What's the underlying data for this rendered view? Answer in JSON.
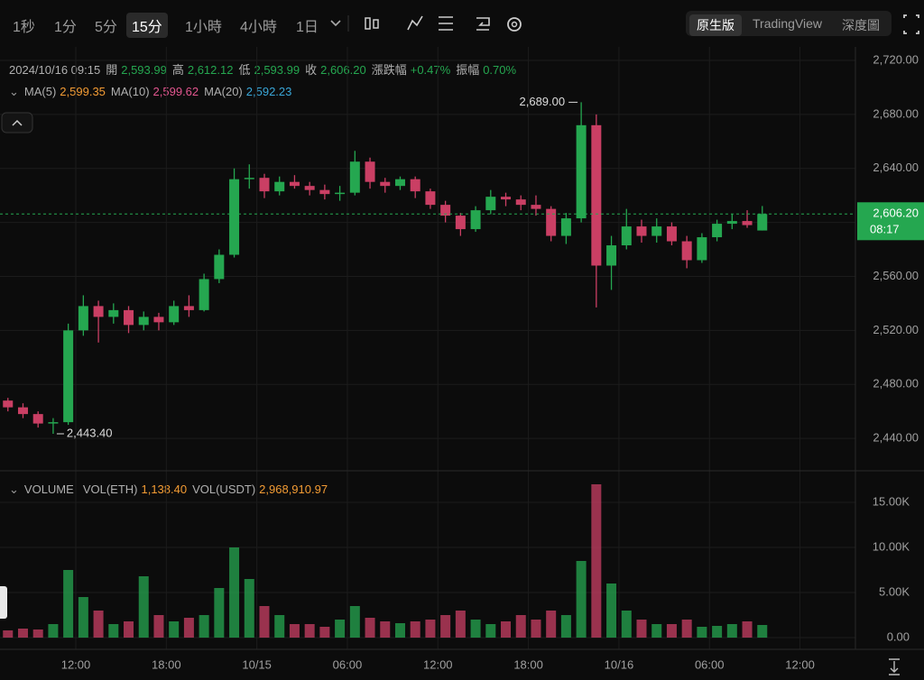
{
  "toolbar": {
    "timeframes": [
      "1秒",
      "1分",
      "5分",
      "15分",
      "1小時",
      "4小時",
      "1日"
    ],
    "views": [
      "原生版",
      "TradingView",
      "深度圖"
    ]
  },
  "ohlc_bar": {
    "time": "2024/10/16 09:15",
    "items": [
      {
        "label": "開",
        "value": "2,593.99"
      },
      {
        "label": "高",
        "value": "2,612.12"
      },
      {
        "label": "低",
        "value": "2,593.99"
      },
      {
        "label": "收",
        "value": "2,606.20"
      },
      {
        "label": "漲跌幅",
        "value": "+0.47%"
      },
      {
        "label": "振幅",
        "value": "0.70%"
      }
    ]
  },
  "ma_bar": [
    {
      "label": "MA(5)",
      "value": "2,599.35",
      "color": "#f39c34"
    },
    {
      "label": "MA(10)",
      "value": "2,599.62",
      "color": "#e2568f"
    },
    {
      "label": "MA(20)",
      "value": "2,592.23",
      "color": "#3aa7d8"
    }
  ],
  "volume_bar": {
    "title": "VOLUME",
    "items": [
      {
        "label": "VOL(ETH)",
        "value": "1,138.40"
      },
      {
        "label": "VOL(USDT)",
        "value": "2,968,910.97"
      }
    ]
  },
  "chart_data": {
    "type": "candlestick",
    "categories": [
      null,
      null,
      null,
      null,
      null,
      "12:00",
      null,
      null,
      null,
      null,
      null,
      "18:00",
      null,
      null,
      null,
      null,
      null,
      "10/15",
      null,
      null,
      null,
      null,
      null,
      "06:00",
      null,
      null,
      null,
      null,
      null,
      "12:00",
      null,
      null,
      null,
      null,
      null,
      "18:00",
      null,
      null,
      null,
      null,
      null,
      "10/16",
      null,
      null,
      null,
      null,
      null,
      "06:00",
      null,
      null,
      null,
      null,
      null,
      "12:00"
    ],
    "open": [
      2468,
      2463,
      2458,
      2451,
      2452,
      2520,
      2538,
      2530,
      2535,
      2524,
      2530,
      2526,
      2538,
      2535,
      2558,
      2576,
      2632,
      2633,
      2623,
      2630,
      2627,
      2624,
      2621,
      2622,
      2645,
      2630,
      2627,
      2632,
      2623,
      2613,
      2605,
      2595,
      2609,
      2619,
      2617,
      2613,
      2610,
      2590,
      2603,
      2672,
      2568,
      2583,
      2597,
      2590,
      2597,
      2586,
      2572,
      2589,
      2599,
      2601,
      2593.99,
      null,
      null,
      null
    ],
    "high": [
      2470,
      2466,
      2460,
      2455,
      2525,
      2546,
      2542,
      2540,
      2538,
      2534,
      2533,
      2542,
      2546,
      2562,
      2580,
      2640,
      2643,
      2636,
      2634,
      2635,
      2630,
      2628,
      2627,
      2653,
      2648,
      2633,
      2634,
      2634,
      2625,
      2616,
      2607,
      2612,
      2624,
      2622,
      2620,
      2620,
      2612,
      2607,
      2689,
      2680,
      2590,
      2610,
      2602,
      2603,
      2600,
      2590,
      2592,
      2602,
      2606,
      2609,
      2612.12,
      null,
      null,
      null
    ],
    "low": [
      2460,
      2455,
      2448,
      2443.4,
      2450,
      2516,
      2511,
      2525,
      2518,
      2520,
      2520,
      2524,
      2530,
      2534,
      2555,
      2574,
      2625,
      2618,
      2620,
      2625,
      2620,
      2617,
      2616,
      2620,
      2625,
      2622,
      2624,
      2618,
      2610,
      2600,
      2590,
      2593,
      2606,
      2612,
      2609,
      2605,
      2586,
      2584,
      2600,
      2537,
      2550,
      2580,
      2585,
      2585,
      2583,
      2566,
      2570,
      2586,
      2595,
      2596,
      2593.99,
      null,
      null,
      null
    ],
    "close": [
      2463,
      2458,
      2451,
      2452,
      2520,
      2538,
      2530,
      2535,
      2524,
      2530,
      2526,
      2538,
      2535,
      2558,
      2576,
      2632,
      2633,
      2623,
      2630,
      2627,
      2624,
      2621,
      2622,
      2645,
      2630,
      2627,
      2632,
      2623,
      2613,
      2605,
      2595,
      2609,
      2619,
      2617,
      2613,
      2610,
      2590,
      2603,
      2672,
      2568,
      2583,
      2597,
      2590,
      2597,
      2586,
      2572,
      2589,
      2599,
      2601,
      2598,
      2606.2,
      null,
      null,
      null
    ],
    "volume": [
      800,
      1000,
      900,
      1500,
      7500,
      4500,
      3000,
      1500,
      1800,
      6800,
      2500,
      1800,
      2200,
      2500,
      5500,
      10000,
      6500,
      3500,
      2500,
      1500,
      1500,
      1200,
      2000,
      3500,
      2200,
      1800,
      1600,
      1800,
      2000,
      2500,
      3000,
      2000,
      1500,
      1800,
      2500,
      2000,
      3000,
      2500,
      8500,
      17000,
      6000,
      3000,
      2000,
      1500,
      1500,
      2000,
      1200,
      1300,
      1500,
      1800,
      1400,
      null,
      null,
      null
    ],
    "up_color": "#25a750",
    "down_color": "#ca3f64",
    "ylim": [
      2416,
      2730
    ],
    "yticks": [
      {
        "value": 2440,
        "label": "2,440.00"
      },
      {
        "value": 2480,
        "label": "2,480.00"
      },
      {
        "value": 2520,
        "label": "2,520.00"
      },
      {
        "value": 2560,
        "label": "2,560.00"
      },
      {
        "value": 2600,
        "label": "2,600.00"
      },
      {
        "value": 2640,
        "label": "2,640.00"
      },
      {
        "value": 2680,
        "label": "2,680.00"
      },
      {
        "value": 2720,
        "label": "2,720.00"
      }
    ],
    "volume_ylim": [
      -1300,
      17700
    ],
    "volume_yticks": [
      {
        "value": 0,
        "label": "0.00"
      },
      {
        "value": 5000,
        "label": "5.00K"
      },
      {
        "value": 10000,
        "label": "10.00K"
      },
      {
        "value": 15000,
        "label": "15.00K"
      }
    ],
    "last_price": {
      "value": 2606.2,
      "label": "2,606.20"
    },
    "countdown": "08:17",
    "high_marker": {
      "value": 2689,
      "label": "2,689.00"
    },
    "low_marker": {
      "value": 2443.4,
      "label": "2,443.40"
    }
  }
}
